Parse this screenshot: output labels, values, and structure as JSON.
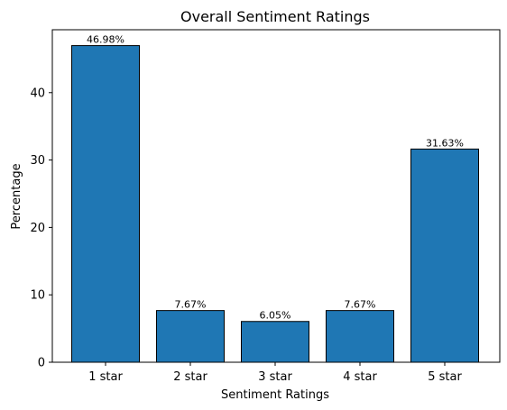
{
  "chart_data": {
    "type": "bar",
    "title": "Overall Sentiment Ratings",
    "xlabel": "Sentiment Ratings",
    "ylabel": "Percentage",
    "categories": [
      "1 star",
      "2 star",
      "3 star",
      "4 star",
      "5 star"
    ],
    "values": [
      46.98,
      7.67,
      6.05,
      7.67,
      31.63
    ],
    "data_labels": [
      "46.98%",
      "7.67%",
      "6.05%",
      "7.67%",
      "31.63%"
    ],
    "ylim": [
      0,
      49.33
    ],
    "yticks": [
      0,
      10,
      20,
      30,
      40
    ],
    "ytick_labels": [
      "0",
      "10",
      "20",
      "30",
      "40"
    ],
    "grid": false,
    "colors": {
      "bar_fill": "#1f77b4",
      "bar_edge": "#000000"
    }
  }
}
